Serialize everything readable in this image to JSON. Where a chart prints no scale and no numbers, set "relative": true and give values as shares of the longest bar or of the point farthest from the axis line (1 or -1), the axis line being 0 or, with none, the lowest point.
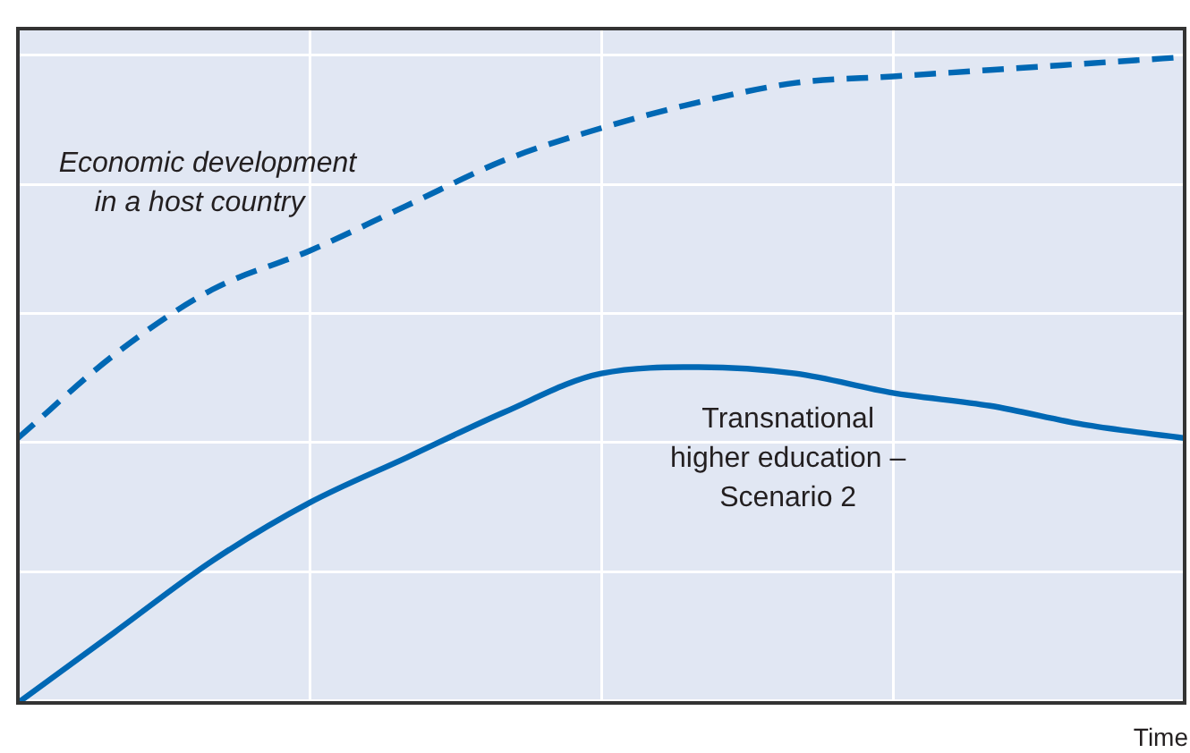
{
  "chart_data": {
    "type": "line",
    "relative": true,
    "xlabel": "Time",
    "categories": [
      null,
      null,
      null,
      null,
      null,
      null,
      null,
      null,
      null,
      null,
      null,
      null,
      null
    ],
    "grid": true,
    "legend": false,
    "series": [
      {
        "name": "Economic development\nin a host country",
        "color": "#0068b4",
        "line_style": "dashed",
        "values": [
          0.41,
          0.54,
          0.64,
          0.7,
          0.77,
          0.84,
          0.89,
          0.93,
          0.96,
          0.97,
          0.98,
          0.99,
          1
        ]
      },
      {
        "name": "Transnational\nhigher education –\nScenario 2",
        "color": "#0068b4",
        "line_style": "solid",
        "values": [
          0,
          0.11,
          0.22,
          0.31,
          0.38,
          0.45,
          0.51,
          0.52,
          0.51,
          0.48,
          0.46,
          0.43,
          0.41
        ]
      }
    ]
  }
}
